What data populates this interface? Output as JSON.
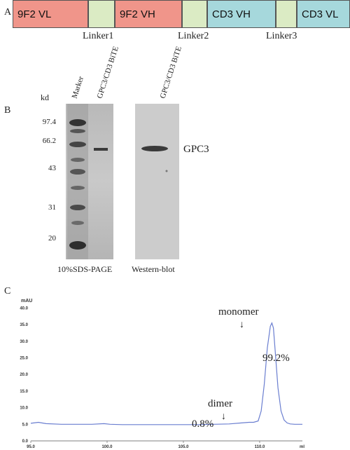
{
  "panel_a": {
    "letter": "A",
    "segments": [
      {
        "label": "9F2 VL",
        "color": "#f0958a"
      },
      {
        "label": "",
        "color": "#dbebc4"
      },
      {
        "label": "9F2 VH",
        "color": "#f0958a"
      },
      {
        "label": "",
        "color": "#dbebc4"
      },
      {
        "label": "CD3 VH",
        "color": "#a6d8dc"
      },
      {
        "label": "",
        "color": "#dbebc4"
      },
      {
        "label": "CD3 VL",
        "color": "#a6d8dc"
      }
    ],
    "linkers": [
      "Linker1",
      "Linker2",
      "Linker3"
    ]
  },
  "panel_b": {
    "letter": "B",
    "kd_label": "kd",
    "lane_labels": [
      "Marker",
      "GPC3/CD3 BiTE",
      "GPC3/CD3 BiTE"
    ],
    "markers": [
      "97.4",
      "66.2",
      "43",
      "31",
      "20"
    ],
    "band_label": "GPC3",
    "gel_captions": [
      "10%SDS-PAGE",
      "Western-blot"
    ]
  },
  "panel_c": {
    "letter": "C",
    "y_unit": "mAU",
    "x_unit": "ml",
    "annotations": {
      "monomer": "monomer",
      "monomer_pct": "99.2%",
      "dimer": "dimer",
      "dimer_pct": "0.8%"
    }
  },
  "chart_data": {
    "type": "line",
    "title": "",
    "xlabel": "ml",
    "ylabel": "mAU",
    "xlim": [
      95.0,
      112.8
    ],
    "ylim": [
      0,
      42
    ],
    "xticks": [
      "95.0",
      "100.0",
      "105.0",
      "110.0"
    ],
    "yticks": [
      "0.0",
      "5.0",
      "10.0",
      "15.0",
      "20.0",
      "25.0",
      "30.0",
      "35.0",
      "40.0"
    ],
    "grid": false,
    "series": [
      {
        "x": [
          95.0,
          95.5,
          96.0,
          97.0,
          98.0,
          99.0,
          99.8,
          100.2,
          101.0,
          102.0,
          103.0,
          104.0,
          105.0,
          106.0,
          107.0,
          108.0,
          108.8,
          109.3,
          109.6,
          109.9,
          110.1,
          110.3,
          110.5,
          110.7,
          110.8,
          110.9,
          111.0,
          111.2,
          111.4,
          111.6,
          111.8,
          112.0,
          112.3,
          112.8
        ],
        "y": [
          5.3,
          5.6,
          5.2,
          5.0,
          5.0,
          5.0,
          5.2,
          5.0,
          4.9,
          4.9,
          4.9,
          4.9,
          4.9,
          4.9,
          5.0,
          5.1,
          5.4,
          5.6,
          5.6,
          6.0,
          9.0,
          17.0,
          28.0,
          34.5,
          35.5,
          34.0,
          28.0,
          16.0,
          9.0,
          6.3,
          5.4,
          5.1,
          5.0,
          5.0
        ]
      }
    ]
  }
}
